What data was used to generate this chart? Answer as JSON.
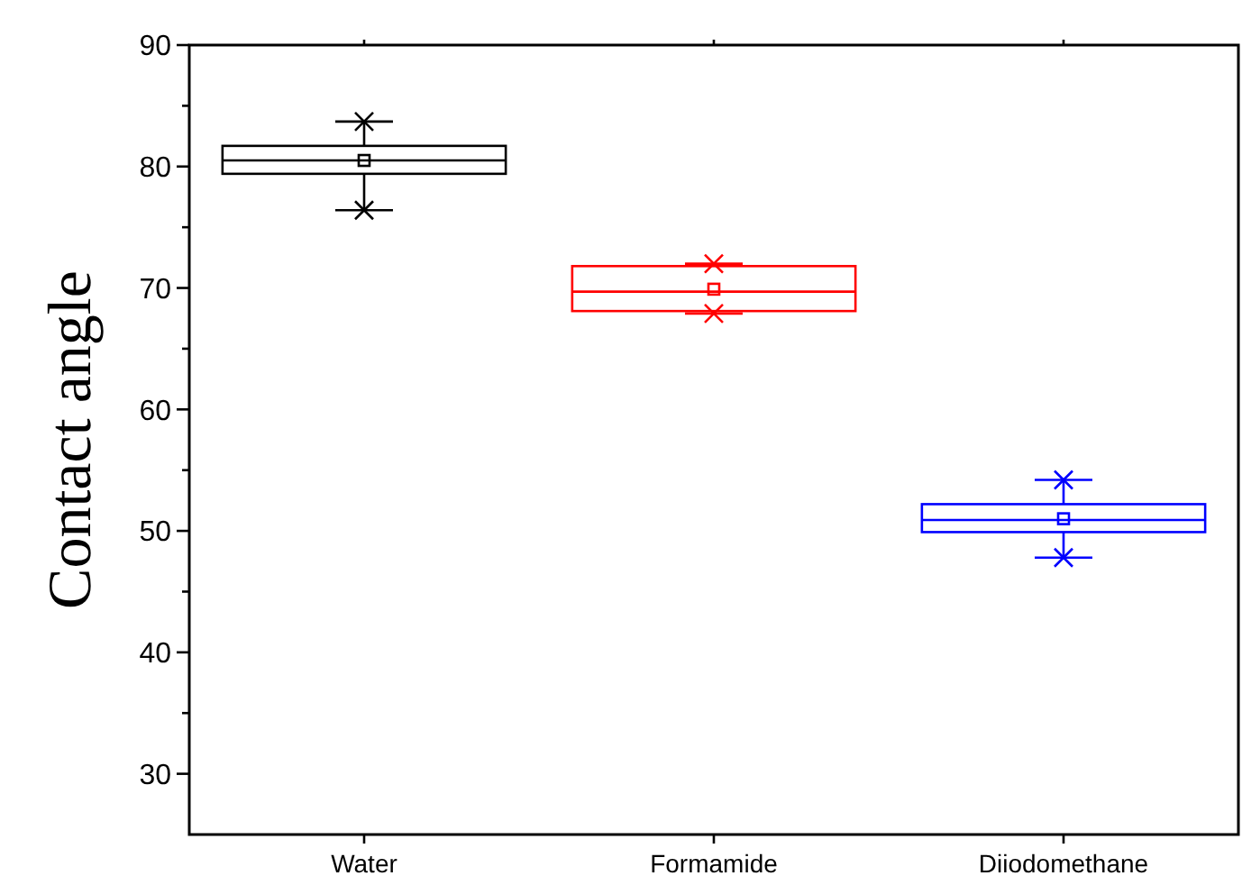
{
  "chart_data": {
    "type": "box",
    "ylabel": "Contact angle",
    "categories": [
      "Water",
      "Formamide",
      "Diiodomethane"
    ],
    "boxes": [
      {
        "low": 76.4,
        "q1": 79.4,
        "median": 80.5,
        "q3": 81.7,
        "high": 83.7,
        "mean": 80.5,
        "outliers": [
          76.4,
          83.7
        ]
      },
      {
        "low": 67.9,
        "q1": 68.1,
        "median": 69.7,
        "q3": 71.8,
        "high": 72.0,
        "mean": 69.9,
        "outliers": [
          67.9,
          72.0
        ]
      },
      {
        "low": 47.8,
        "q1": 49.9,
        "median": 50.9,
        "q3": 52.2,
        "high": 54.2,
        "mean": 51.0,
        "outliers": [
          47.8,
          54.2
        ]
      }
    ],
    "colors": [
      "#000000",
      "#ff0000",
      "#0000ff"
    ],
    "ylim": [
      25,
      90
    ],
    "yticks": [
      30,
      {
        "value": 35,
        "label": null
      },
      40,
      {
        "value": 45,
        "label": null
      },
      50,
      {
        "value": 55,
        "label": null
      },
      60,
      {
        "value": 65,
        "label": null
      },
      70,
      {
        "value": 75,
        "label": null
      },
      80,
      {
        "value": 85,
        "label": null
      },
      90
    ],
    "grid": false
  }
}
